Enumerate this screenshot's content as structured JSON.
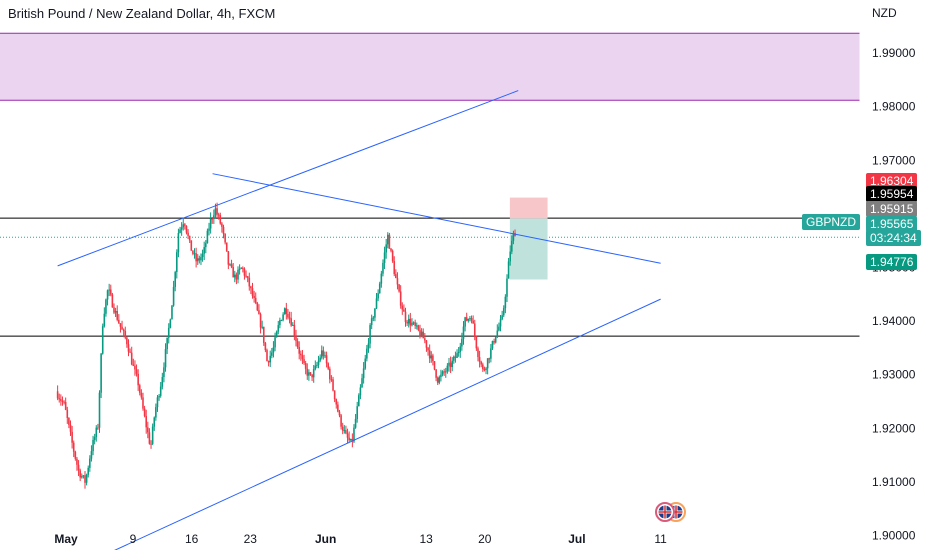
{
  "header": {
    "title": "British Pound / New Zealand Dollar, 4h, FXCM"
  },
  "chart_data": {
    "type": "candlestick",
    "currency_label": "NZD",
    "symbol": "GBPNZD",
    "y_ticks": [
      "1.99000",
      "1.98000",
      "1.97000",
      "1.95000",
      "1.94000",
      "1.93000",
      "1.92000",
      "1.91000",
      "1.90000"
    ],
    "y_tick_values": [
      1.99,
      1.98,
      1.97,
      1.95,
      1.94,
      1.93,
      1.92,
      1.91,
      1.9
    ],
    "x_ticks": [
      "May",
      "9",
      "16",
      "23",
      "Jun",
      "13",
      "20",
      "Jul",
      "11"
    ],
    "x_tick_days": [
      0,
      8,
      15,
      22,
      31,
      43,
      50,
      61,
      71
    ],
    "ylim": [
      1.8973,
      1.9999
    ],
    "price_labels": [
      {
        "key": "stop",
        "text": "1.96304",
        "value": 1.96304,
        "bg": "#f23645",
        "fg": "#ffffff"
      },
      {
        "key": "level_black",
        "text": "1.95954",
        "value": 1.95954,
        "bg": "#000000",
        "fg": "#ffffff"
      },
      {
        "key": "level_grey",
        "text": "1.95915",
        "value": 1.95915,
        "bg": "#7f7f7f",
        "fg": "#ffffff"
      },
      {
        "key": "last",
        "text": "1.95565",
        "value": 1.95565,
        "bg": "#26a69a",
        "fg": "#ffffff"
      },
      {
        "key": "countdown",
        "text": "03:24:34",
        "bg": "#26a69a",
        "fg": "#ffffff"
      },
      {
        "key": "target",
        "text": "1.94776",
        "value": 1.94776,
        "bg": "#089981",
        "fg": "#ffffff"
      }
    ],
    "zones": {
      "supply": {
        "from": 1.9812,
        "to": 1.9937,
        "fill": "#ead4ef",
        "edge": "#9c27b0"
      }
    },
    "horizontal_levels": [
      1.9592,
      1.9372
    ],
    "trendlines": [
      {
        "name": "upper-channel",
        "points": [
          [
            -1,
            1.9503
          ],
          [
            54,
            1.983
          ]
        ]
      },
      {
        "name": "descending-resistance",
        "points": [
          [
            17.5,
            1.9675
          ],
          [
            71,
            1.9508
          ]
        ]
      },
      {
        "name": "lower-channel",
        "points": [
          [
            4.5,
            1.8963
          ],
          [
            71,
            1.9441
          ]
        ]
      }
    ],
    "position": {
      "start_day": 53.0,
      "end_day": 57.5,
      "entry": 1.95915,
      "stop": 1.96304,
      "target": 1.94776,
      "risk_color": "#f7c6c9",
      "reward_color": "#bfe3dc"
    },
    "candles_path": [
      [
        -1.0,
        1.9269
      ],
      [
        0.0,
        1.9243
      ],
      [
        1.0,
        1.9166
      ],
      [
        1.7,
        1.912
      ],
      [
        2.5,
        1.91
      ],
      [
        3.2,
        1.916
      ],
      [
        4.0,
        1.9205
      ],
      [
        4.6,
        1.9405
      ],
      [
        5.2,
        1.946
      ],
      [
        6.0,
        1.942
      ],
      [
        6.8,
        1.9385
      ],
      [
        7.5,
        1.936
      ],
      [
        8.2,
        1.9315
      ],
      [
        8.8,
        1.9285
      ],
      [
        9.5,
        1.9225
      ],
      [
        10.3,
        1.9165
      ],
      [
        10.8,
        1.923
      ],
      [
        11.6,
        1.929
      ],
      [
        12.3,
        1.9365
      ],
      [
        13.0,
        1.9455
      ],
      [
        13.6,
        1.9565
      ],
      [
        14.3,
        1.959
      ],
      [
        15.0,
        1.954
      ],
      [
        15.8,
        1.951
      ],
      [
        16.6,
        1.9525
      ],
      [
        17.4,
        1.9585
      ],
      [
        18.0,
        1.961
      ],
      [
        18.8,
        1.9575
      ],
      [
        19.6,
        1.9505
      ],
      [
        20.4,
        1.948
      ],
      [
        21.2,
        1.95
      ],
      [
        22.0,
        1.947
      ],
      [
        22.8,
        1.943
      ],
      [
        23.6,
        1.9385
      ],
      [
        24.2,
        1.9325
      ],
      [
        24.9,
        1.9345
      ],
      [
        25.7,
        1.94
      ],
      [
        26.4,
        1.9425
      ],
      [
        27.2,
        1.9395
      ],
      [
        28.0,
        1.9345
      ],
      [
        28.7,
        1.931
      ],
      [
        29.4,
        1.9295
      ],
      [
        30.1,
        1.9315
      ],
      [
        30.8,
        1.9345
      ],
      [
        31.5,
        1.931
      ],
      [
        32.2,
        1.9265
      ],
      [
        32.9,
        1.9215
      ],
      [
        33.6,
        1.9185
      ],
      [
        34.3,
        1.917
      ],
      [
        35.0,
        1.924
      ],
      [
        35.8,
        1.9315
      ],
      [
        36.5,
        1.9385
      ],
      [
        37.3,
        1.944
      ],
      [
        38.0,
        1.9505
      ],
      [
        38.6,
        1.956
      ],
      [
        39.3,
        1.95
      ],
      [
        40.0,
        1.9445
      ],
      [
        40.7,
        1.9405
      ],
      [
        41.5,
        1.9395
      ],
      [
        42.3,
        1.938
      ],
      [
        43.0,
        1.9365
      ],
      [
        43.8,
        1.933
      ],
      [
        44.6,
        1.929
      ],
      [
        45.4,
        1.9305
      ],
      [
        46.2,
        1.932
      ],
      [
        47.0,
        1.934
      ],
      [
        47.8,
        1.94
      ],
      [
        48.6,
        1.941
      ],
      [
        49.3,
        1.9345
      ],
      [
        50.0,
        1.9305
      ],
      [
        50.7,
        1.9335
      ],
      [
        51.5,
        1.9375
      ],
      [
        52.3,
        1.9405
      ],
      [
        52.8,
        1.947
      ],
      [
        53.2,
        1.953
      ],
      [
        53.7,
        1.9566
      ]
    ]
  },
  "icons": [
    "flag-uk-icon",
    "flag-uk-icon"
  ]
}
